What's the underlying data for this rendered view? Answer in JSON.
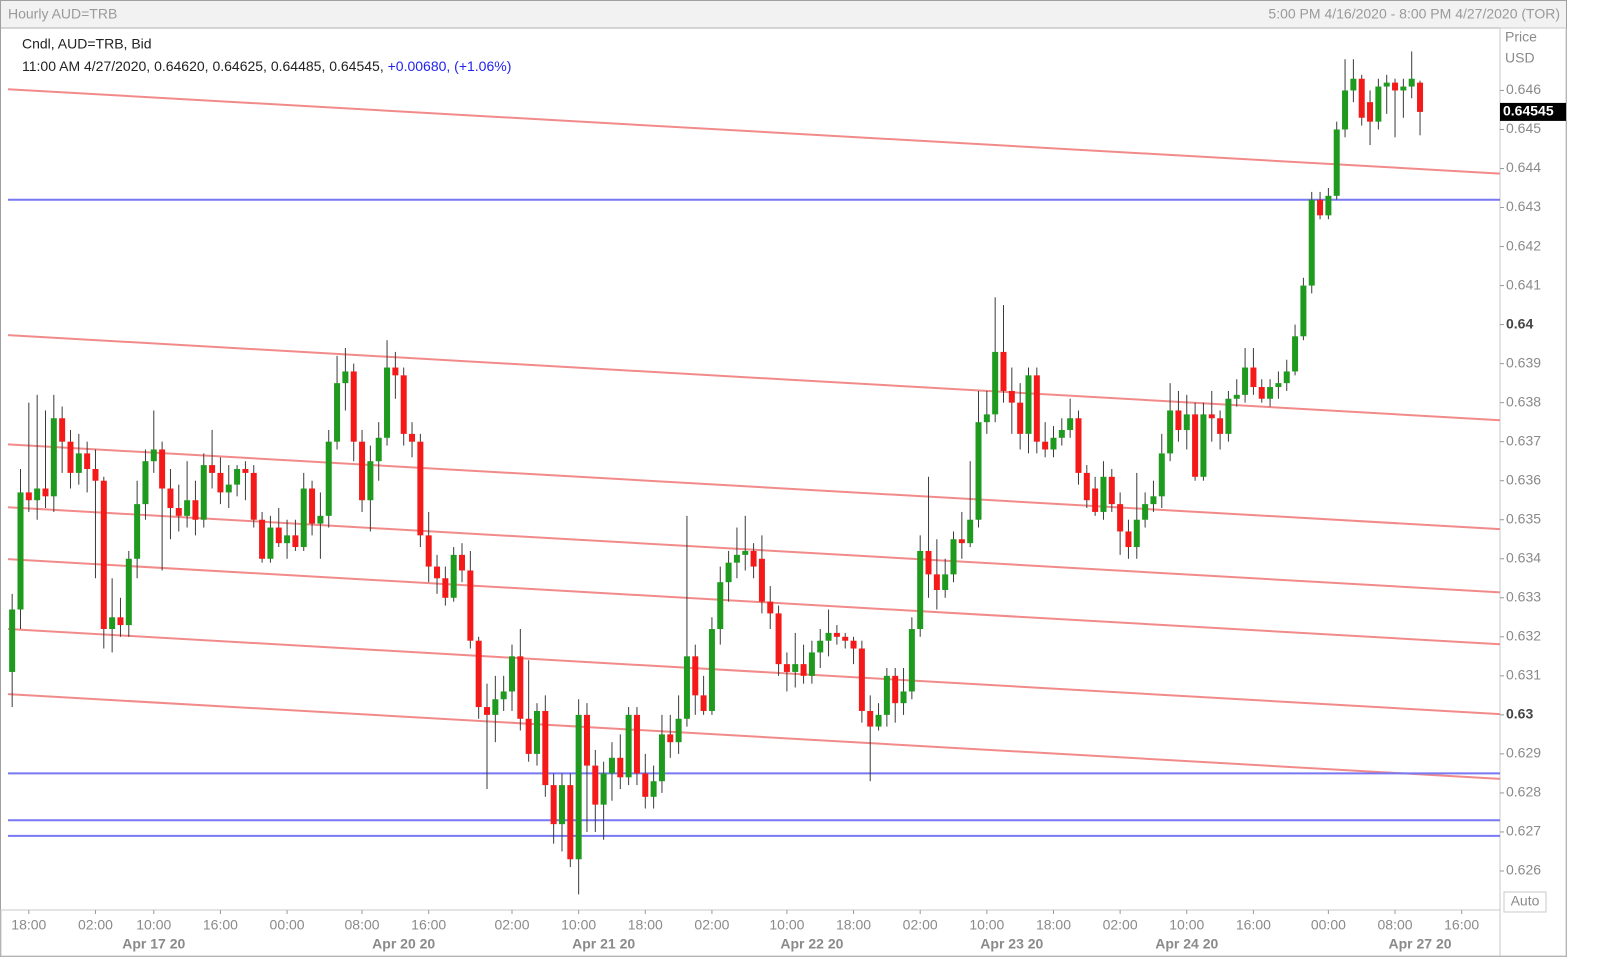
{
  "chart_data": {
    "type": "candlestick",
    "title": "Hourly AUD=TRB",
    "date_range": "5:00 PM 4/16/2020 - 8:00 PM 4/27/2020 (TOR)",
    "legend": {
      "series_label": "Cndl, AUD=TRB, Bid",
      "ohlc_text": "11:00 AM 4/27/2020, 0.64620, 0.64625, 0.64485, 0.64545,",
      "change_text": "+0.00680, (+1.06%)"
    },
    "y_axis_label": [
      "Price",
      "USD"
    ],
    "auto_button": "Auto",
    "ylim": [
      0.625,
      0.6476
    ],
    "yticks": [
      0.626,
      0.627,
      0.628,
      0.629,
      0.63,
      0.631,
      0.632,
      0.633,
      0.634,
      0.635,
      0.636,
      0.637,
      0.638,
      0.639,
      0.64,
      0.641,
      0.642,
      0.643,
      0.644,
      0.645,
      0.646
    ],
    "xlim": [
      -0.5,
      178.6
    ],
    "xticks": [
      {
        "value": 2,
        "label": "18:00"
      },
      {
        "value": 10,
        "label": "02:00"
      },
      {
        "value": 17,
        "label": "10:00"
      },
      {
        "value": 25,
        "label": "16:00"
      },
      {
        "value": 33,
        "label": "00:00"
      },
      {
        "value": 42,
        "label": "08:00"
      },
      {
        "value": 50,
        "label": "16:00"
      },
      {
        "value": 60,
        "label": "02:00"
      },
      {
        "value": 68,
        "label": "10:00"
      },
      {
        "value": 76,
        "label": "18:00"
      },
      {
        "value": 84,
        "label": "02:00"
      },
      {
        "value": 93,
        "label": "10:00"
      },
      {
        "value": 101,
        "label": "18:00"
      },
      {
        "value": 109,
        "label": "02:00"
      },
      {
        "value": 117,
        "label": "10:00"
      },
      {
        "value": 125,
        "label": "18:00"
      },
      {
        "value": 133,
        "label": "02:00"
      },
      {
        "value": 141,
        "label": "10:00"
      },
      {
        "value": 149,
        "label": "16:00"
      },
      {
        "value": 158,
        "label": "00:00"
      },
      {
        "value": 166,
        "label": "08:00"
      },
      {
        "value": 174,
        "label": "16:00"
      }
    ],
    "day_labels": [
      {
        "value": 17,
        "label": "Apr 17 20"
      },
      {
        "value": 47,
        "label": "Apr 20 20"
      },
      {
        "value": 71,
        "label": "Apr 21 20"
      },
      {
        "value": 96,
        "label": "Apr 22 20"
      },
      {
        "value": 120,
        "label": "Apr 23 20"
      },
      {
        "value": 141,
        "label": "Apr 24 20"
      },
      {
        "value": 169,
        "label": "Apr 27 20"
      }
    ],
    "grid": false,
    "up_color": "#1e9a1e",
    "down_color": "#f41a1a",
    "open": [
      0.6311,
      0.6327,
      0.6357,
      0.6355,
      0.6358,
      0.6356,
      0.6376,
      0.637,
      0.6362,
      0.6367,
      0.6363,
      0.636,
      0.6322,
      0.6325,
      0.6323,
      0.634,
      0.6354,
      0.6365,
      0.6368,
      0.6358,
      0.6353,
      0.6351,
      0.6355,
      0.635,
      0.6364,
      0.6362,
      0.6357,
      0.6359,
      0.6363,
      0.6362,
      0.635,
      0.634,
      0.6348,
      0.6344,
      0.6346,
      0.6343,
      0.6358,
      0.6349,
      0.6351,
      0.637,
      0.6385,
      0.6388,
      0.637,
      0.6355,
      0.6365,
      0.6371,
      0.6389,
      0.6387,
      0.6372,
      0.637,
      0.6346,
      0.6338,
      0.6335,
      0.633,
      0.6341,
      0.6337,
      0.6319,
      0.6302,
      0.63,
      0.6304,
      0.6306,
      0.6315,
      0.6299,
      0.629,
      0.6301,
      0.6282,
      0.6272,
      0.6282,
      0.6263,
      0.63,
      0.6287,
      0.6277,
      0.6285,
      0.6289,
      0.6284,
      0.63,
      0.6285,
      0.6279,
      0.6283,
      0.6295,
      0.6293,
      0.6299,
      0.6315,
      0.6305,
      0.6301,
      0.6322,
      0.6334,
      0.6339,
      0.6341,
      0.6342,
      0.634,
      0.6329,
      0.6326,
      0.6313,
      0.6311,
      0.6313,
      0.631,
      0.6316,
      0.6319,
      0.6321,
      0.632,
      0.6319,
      0.6317,
      0.6301,
      0.6297,
      0.63,
      0.631,
      0.6303,
      0.6306,
      0.6322,
      0.6342,
      0.6336,
      0.6332,
      0.6336,
      0.6345,
      0.6344,
      0.635,
      0.6375,
      0.6377,
      0.6393,
      0.6383,
      0.638,
      0.6372,
      0.6387,
      0.637,
      0.6368,
      0.6371,
      0.6373,
      0.6376,
      0.6362,
      0.6358,
      0.6352,
      0.6361,
      0.6354,
      0.6347,
      0.6343,
      0.635,
      0.6354,
      0.6356,
      0.6367,
      0.6378,
      0.6373,
      0.6377,
      0.6361,
      0.6377,
      0.6376,
      0.6372,
      0.6381,
      0.6382,
      0.6389,
      0.6384,
      0.6381,
      0.6384,
      0.6385,
      0.6388,
      0.6397,
      0.641,
      0.6432,
      0.6428,
      0.6433,
      0.645,
      0.646,
      0.6463,
      0.6457,
      0.6452,
      0.6461,
      0.6462,
      0.646,
      0.6461,
      0.6462
    ],
    "high": [
      0.6331,
      0.6363,
      0.638,
      0.6382,
      0.6378,
      0.6382,
      0.6379,
      0.6373,
      0.6372,
      0.637,
      0.6368,
      0.6361,
      0.6335,
      0.633,
      0.6342,
      0.636,
      0.6368,
      0.6378,
      0.637,
      0.6363,
      0.6359,
      0.6365,
      0.636,
      0.6367,
      0.6373,
      0.6366,
      0.6364,
      0.6364,
      0.6365,
      0.6364,
      0.6352,
      0.6351,
      0.6353,
      0.635,
      0.635,
      0.6362,
      0.636,
      0.6357,
      0.6373,
      0.6392,
      0.6394,
      0.639,
      0.6373,
      0.6369,
      0.6375,
      0.6396,
      0.6393,
      0.6389,
      0.6375,
      0.6372,
      0.6352,
      0.6341,
      0.6338,
      0.6343,
      0.6344,
      0.6342,
      0.632,
      0.6308,
      0.631,
      0.631,
      0.6318,
      0.6322,
      0.6314,
      0.6303,
      0.6305,
      0.6285,
      0.6285,
      0.6285,
      0.6304,
      0.6303,
      0.6291,
      0.6288,
      0.6293,
      0.6295,
      0.6302,
      0.6302,
      0.629,
      0.6287,
      0.63,
      0.63,
      0.6305,
      0.6351,
      0.6318,
      0.631,
      0.6325,
      0.6338,
      0.6342,
      0.6348,
      0.6351,
      0.6344,
      0.6346,
      0.6333,
      0.6328,
      0.6316,
      0.6321,
      0.6318,
      0.6319,
      0.6322,
      0.6327,
      0.6323,
      0.6321,
      0.632,
      0.6319,
      0.6305,
      0.6303,
      0.6312,
      0.6312,
      0.6312,
      0.6325,
      0.6346,
      0.6361,
      0.6345,
      0.634,
      0.6347,
      0.6352,
      0.6365,
      0.6383,
      0.6383,
      0.6407,
      0.6405,
      0.6389,
      0.6385,
      0.6389,
      0.6389,
      0.6375,
      0.6374,
      0.6376,
      0.6381,
      0.6378,
      0.6364,
      0.6361,
      0.6365,
      0.6363,
      0.6357,
      0.635,
      0.6362,
      0.6357,
      0.636,
      0.6372,
      0.6385,
      0.6383,
      0.6382,
      0.638,
      0.638,
      0.6383,
      0.6378,
      0.6383,
      0.6386,
      0.6394,
      0.6394,
      0.6386,
      0.6386,
      0.6388,
      0.6391,
      0.64,
      0.6412,
      0.6434,
      0.6434,
      0.6435,
      0.6452,
      0.6468,
      0.6468,
      0.6464,
      0.646,
      0.6463,
      0.6464,
      0.6463,
      0.6463,
      0.647,
      0.64625
    ],
    "low": [
      0.6302,
      0.6322,
      0.6352,
      0.635,
      0.6353,
      0.6352,
      0.6362,
      0.6358,
      0.6359,
      0.6357,
      0.6335,
      0.6317,
      0.6316,
      0.632,
      0.632,
      0.6335,
      0.635,
      0.6362,
      0.6337,
      0.6345,
      0.6347,
      0.6348,
      0.6346,
      0.6348,
      0.6358,
      0.6354,
      0.6353,
      0.6356,
      0.6355,
      0.6348,
      0.6339,
      0.6339,
      0.6343,
      0.634,
      0.6342,
      0.6342,
      0.6346,
      0.634,
      0.6348,
      0.6368,
      0.6378,
      0.6365,
      0.6352,
      0.6347,
      0.636,
      0.6369,
      0.6381,
      0.6369,
      0.6366,
      0.6343,
      0.6334,
      0.6331,
      0.6328,
      0.6329,
      0.6334,
      0.6317,
      0.6299,
      0.6281,
      0.6293,
      0.6301,
      0.6301,
      0.6296,
      0.6288,
      0.6287,
      0.6279,
      0.6267,
      0.6265,
      0.6261,
      0.6254,
      0.627,
      0.627,
      0.6268,
      0.6278,
      0.6281,
      0.6282,
      0.6282,
      0.6276,
      0.6276,
      0.628,
      0.6289,
      0.629,
      0.6297,
      0.63,
      0.63,
      0.63,
      0.6318,
      0.6329,
      0.6335,
      0.6337,
      0.6335,
      0.6326,
      0.6322,
      0.631,
      0.6306,
      0.6307,
      0.6308,
      0.6308,
      0.6312,
      0.6315,
      0.6318,
      0.6317,
      0.6313,
      0.6298,
      0.6283,
      0.6296,
      0.6297,
      0.6298,
      0.63,
      0.6304,
      0.632,
      0.633,
      0.6327,
      0.633,
      0.6334,
      0.634,
      0.6343,
      0.6348,
      0.6372,
      0.6375,
      0.638,
      0.6372,
      0.6368,
      0.6367,
      0.6367,
      0.6366,
      0.6366,
      0.6369,
      0.6371,
      0.6359,
      0.6353,
      0.6351,
      0.635,
      0.6352,
      0.6341,
      0.634,
      0.634,
      0.6348,
      0.6352,
      0.6353,
      0.6365,
      0.637,
      0.6368,
      0.636,
      0.636,
      0.637,
      0.6368,
      0.637,
      0.6379,
      0.638,
      0.6382,
      0.638,
      0.6379,
      0.6381,
      0.6383,
      0.6387,
      0.6396,
      0.6408,
      0.6427,
      0.6427,
      0.6432,
      0.6448,
      0.6457,
      0.6451,
      0.6446,
      0.645,
      0.6454,
      0.6448,
      0.6453,
      0.6458,
      0.64485
    ],
    "close": [
      0.6327,
      0.6357,
      0.6355,
      0.6358,
      0.6356,
      0.6376,
      0.637,
      0.6362,
      0.6367,
      0.6363,
      0.636,
      0.6322,
      0.6325,
      0.6323,
      0.634,
      0.6354,
      0.6365,
      0.6368,
      0.6358,
      0.6353,
      0.6351,
      0.6355,
      0.635,
      0.6364,
      0.6362,
      0.6357,
      0.6359,
      0.6363,
      0.6362,
      0.635,
      0.634,
      0.6348,
      0.6344,
      0.6346,
      0.6343,
      0.6358,
      0.6349,
      0.6351,
      0.637,
      0.6385,
      0.6388,
      0.637,
      0.6355,
      0.6365,
      0.6371,
      0.6389,
      0.6387,
      0.6372,
      0.637,
      0.6346,
      0.6338,
      0.6335,
      0.633,
      0.6341,
      0.6337,
      0.6319,
      0.6302,
      0.63,
      0.6304,
      0.6306,
      0.6315,
      0.6299,
      0.629,
      0.6301,
      0.6282,
      0.6272,
      0.6282,
      0.6263,
      0.63,
      0.6287,
      0.6277,
      0.6285,
      0.6289,
      0.6284,
      0.63,
      0.6285,
      0.6279,
      0.6283,
      0.6295,
      0.6293,
      0.6299,
      0.6315,
      0.6305,
      0.6301,
      0.6322,
      0.6334,
      0.6339,
      0.6341,
      0.6342,
      0.6338,
      0.6329,
      0.6326,
      0.6313,
      0.6311,
      0.6313,
      0.631,
      0.6316,
      0.6319,
      0.6321,
      0.632,
      0.6319,
      0.6317,
      0.6301,
      0.6297,
      0.63,
      0.631,
      0.6303,
      0.6306,
      0.6322,
      0.6342,
      0.6336,
      0.6332,
      0.6336,
      0.6345,
      0.6344,
      0.635,
      0.6375,
      0.6377,
      0.6393,
      0.6383,
      0.638,
      0.6372,
      0.6387,
      0.637,
      0.6368,
      0.6371,
      0.6373,
      0.6376,
      0.6362,
      0.6355,
      0.6352,
      0.6361,
      0.6354,
      0.6347,
      0.6343,
      0.635,
      0.6354,
      0.6356,
      0.6367,
      0.6378,
      0.6373,
      0.6377,
      0.6361,
      0.6377,
      0.6376,
      0.6372,
      0.6381,
      0.6382,
      0.6389,
      0.6384,
      0.6381,
      0.6384,
      0.6385,
      0.6388,
      0.6397,
      0.641,
      0.6432,
      0.6428,
      0.6433,
      0.645,
      0.646,
      0.6463,
      0.6453,
      0.6452,
      0.6461,
      0.6462,
      0.646,
      0.6461,
      0.6463,
      0.64545
    ],
    "last_price": 0.64545,
    "support_lines": {
      "color": "#7878f4",
      "values": [
        0.6432,
        0.6285,
        0.6273,
        0.6269
      ]
    },
    "trend_lines": {
      "color": "#f28a8a",
      "lines": [
        {
          "start": 0.64603,
          "end": 0.64387
        },
        {
          "start": 0.63973,
          "end": 0.63755
        },
        {
          "start": 0.63693,
          "end": 0.63476
        },
        {
          "start": 0.63532,
          "end": 0.63314
        },
        {
          "start": 0.63399,
          "end": 0.63181
        },
        {
          "start": 0.6322,
          "end": 0.63002
        },
        {
          "start": 0.63053,
          "end": 0.62836
        }
      ]
    }
  }
}
